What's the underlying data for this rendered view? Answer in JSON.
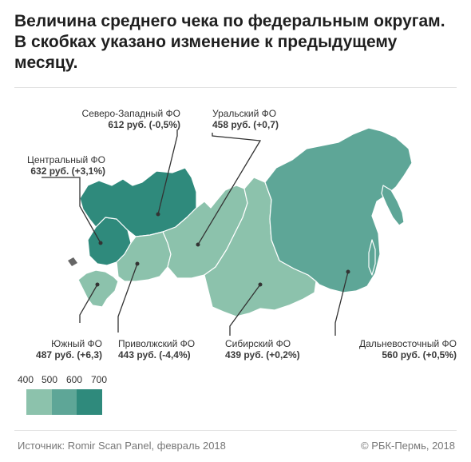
{
  "title": "Величина среднего чека по федеральным округам. В скобках указано изменение к предыдущему месяцу.",
  "colors": {
    "low": "#8cc2ac",
    "mid": "#5ea697",
    "high": "#2f8a7c",
    "border": "#ffffff",
    "leader": "#333333",
    "kaliningrad": "#666666"
  },
  "districts": [
    {
      "name": "Северо-Западный ФО",
      "value": "612 руб. (-0,5%)"
    },
    {
      "name": "Уральский ФО",
      "value": "458 руб. (+0,7)"
    },
    {
      "name": "Центральный ФО",
      "value": "632 руб. (+3,1%)"
    },
    {
      "name": "Южный ФО",
      "value": "487 руб. (+6,3)"
    },
    {
      "name": "Приволжский ФО",
      "value": "443 руб. (-4,4%)"
    },
    {
      "name": "Сибирский ФО",
      "value": "439 руб. (+0,2%)"
    },
    {
      "name": "Дальневосточный ФО",
      "value": "560 руб. (+0,5%)"
    }
  ],
  "legend": {
    "ticks": [
      "400",
      "500",
      "600",
      "700"
    ]
  },
  "footer": {
    "source": "Источник: Romir Scan Panel, февраль 2018",
    "copyright": "© РБК-Пермь, 2018"
  }
}
